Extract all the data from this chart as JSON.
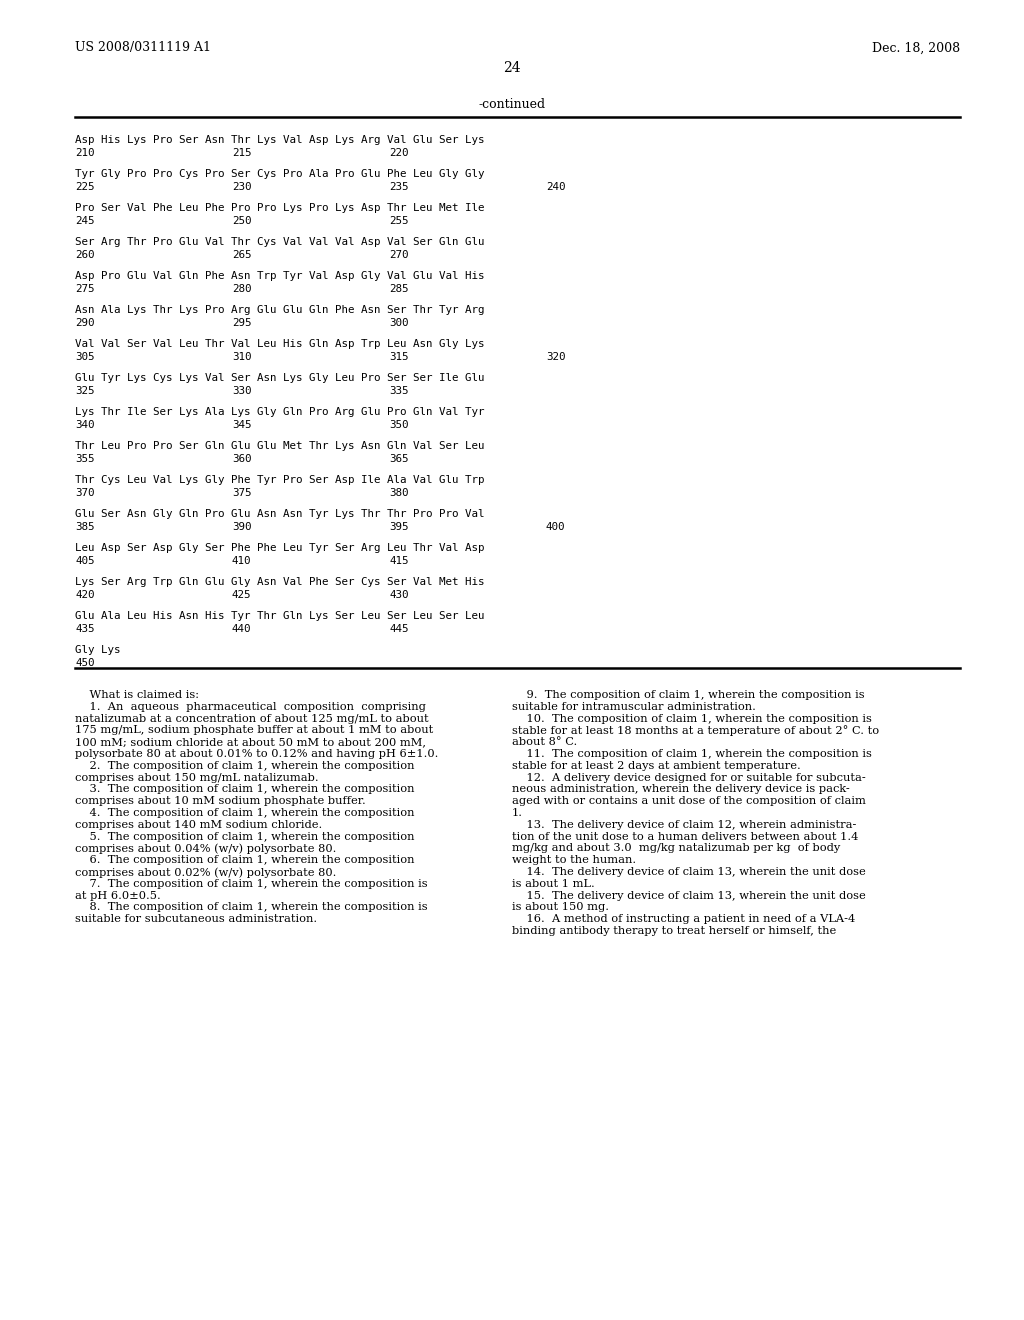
{
  "header_left": "US 2008/0311119 A1",
  "header_right": "Dec. 18, 2008",
  "page_number": "24",
  "continued_label": "-continued",
  "background_color": "#ffffff",
  "seq_data": [
    {
      "aa": "Asp His Lys Pro Ser Asn Thr Lys Val Asp Lys Arg Val Glu Ser Lys",
      "nums": [
        [
          "210",
          0
        ],
        [
          "215",
          157
        ],
        [
          "220",
          314
        ]
      ]
    },
    {
      "aa": "Tyr Gly Pro Pro Cys Pro Ser Cys Pro Ala Pro Glu Phe Leu Gly Gly",
      "nums": [
        [
          "225",
          0
        ],
        [
          "230",
          157
        ],
        [
          "235",
          314
        ],
        [
          "240",
          471
        ]
      ]
    },
    {
      "aa": "Pro Ser Val Phe Leu Phe Pro Pro Lys Pro Lys Asp Thr Leu Met Ile",
      "nums": [
        [
          "245",
          0
        ],
        [
          "250",
          157
        ],
        [
          "255",
          314
        ]
      ]
    },
    {
      "aa": "Ser Arg Thr Pro Glu Val Thr Cys Val Val Val Asp Val Ser Gln Glu",
      "nums": [
        [
          "260",
          0
        ],
        [
          "265",
          157
        ],
        [
          "270",
          314
        ]
      ]
    },
    {
      "aa": "Asp Pro Glu Val Gln Phe Asn Trp Tyr Val Asp Gly Val Glu Val His",
      "nums": [
        [
          "275",
          0
        ],
        [
          "280",
          157
        ],
        [
          "285",
          314
        ]
      ]
    },
    {
      "aa": "Asn Ala Lys Thr Lys Pro Arg Glu Glu Gln Phe Asn Ser Thr Tyr Arg",
      "nums": [
        [
          "290",
          0
        ],
        [
          "295",
          157
        ],
        [
          "300",
          314
        ]
      ]
    },
    {
      "aa": "Val Val Ser Val Leu Thr Val Leu His Gln Asp Trp Leu Asn Gly Lys",
      "nums": [
        [
          "305",
          0
        ],
        [
          "310",
          157
        ],
        [
          "315",
          314
        ],
        [
          "320",
          471
        ]
      ]
    },
    {
      "aa": "Glu Tyr Lys Cys Lys Val Ser Asn Lys Gly Leu Pro Ser Ser Ile Glu",
      "nums": [
        [
          "325",
          0
        ],
        [
          "330",
          157
        ],
        [
          "335",
          314
        ]
      ]
    },
    {
      "aa": "Lys Thr Ile Ser Lys Ala Lys Gly Gln Pro Arg Glu Pro Gln Val Tyr",
      "nums": [
        [
          "340",
          0
        ],
        [
          "345",
          157
        ],
        [
          "350",
          314
        ]
      ]
    },
    {
      "aa": "Thr Leu Pro Pro Ser Gln Glu Glu Met Thr Lys Asn Gln Val Ser Leu",
      "nums": [
        [
          "355",
          0
        ],
        [
          "360",
          157
        ],
        [
          "365",
          314
        ]
      ]
    },
    {
      "aa": "Thr Cys Leu Val Lys Gly Phe Tyr Pro Ser Asp Ile Ala Val Glu Trp",
      "nums": [
        [
          "370",
          0
        ],
        [
          "375",
          157
        ],
        [
          "380",
          314
        ]
      ]
    },
    {
      "aa": "Glu Ser Asn Gly Gln Pro Glu Asn Asn Tyr Lys Thr Thr Pro Pro Val",
      "nums": [
        [
          "385",
          0
        ],
        [
          "390",
          157
        ],
        [
          "395",
          314
        ],
        [
          "400",
          471
        ]
      ]
    },
    {
      "aa": "Leu Asp Ser Asp Gly Ser Phe Phe Leu Tyr Ser Arg Leu Thr Val Asp",
      "nums": [
        [
          "405",
          0
        ],
        [
          "410",
          157
        ],
        [
          "415",
          314
        ]
      ]
    },
    {
      "aa": "Lys Ser Arg Trp Gln Glu Gly Asn Val Phe Ser Cys Ser Val Met His",
      "nums": [
        [
          "420",
          0
        ],
        [
          "425",
          157
        ],
        [
          "430",
          314
        ]
      ]
    },
    {
      "aa": "Glu Ala Leu His Asn His Tyr Thr Gln Lys Ser Leu Ser Leu Ser Leu",
      "nums": [
        [
          "435",
          0
        ],
        [
          "440",
          157
        ],
        [
          "445",
          314
        ]
      ]
    },
    {
      "aa": "Gly Lys",
      "nums": [
        [
          "450",
          0
        ]
      ]
    }
  ],
  "left_claims": [
    [
      "    What is claimed is:",
      false
    ],
    [
      "    1.  An  aqueous  pharmaceutical  composition  comprising",
      true
    ],
    [
      "natalizumab at a concentration of about 125 mg/mL to about",
      false
    ],
    [
      "175 mg/mL, sodium phosphate buffer at about 1 mM to about",
      false
    ],
    [
      "100 mM; sodium chloride at about 50 mM to about 200 mM,",
      false
    ],
    [
      "polysorbate 80 at about 0.01% to 0.12% and having pH 6±1.0.",
      false
    ],
    [
      "    2.  The composition of claim 1, wherein the composition",
      true
    ],
    [
      "comprises about 150 mg/mL natalizumab.",
      false
    ],
    [
      "    3.  The composition of claim 1, wherein the composition",
      true
    ],
    [
      "comprises about 10 mM sodium phosphate buffer.",
      false
    ],
    [
      "    4.  The composition of claim 1, wherein the composition",
      true
    ],
    [
      "comprises about 140 mM sodium chloride.",
      false
    ],
    [
      "    5.  The composition of claim 1, wherein the composition",
      true
    ],
    [
      "comprises about 0.04% (w/v) polysorbate 80.",
      false
    ],
    [
      "    6.  The composition of claim 1, wherein the composition",
      true
    ],
    [
      "comprises about 0.02% (w/v) polysorbate 80.",
      false
    ],
    [
      "    7.  The composition of claim 1, wherein the composition is",
      true
    ],
    [
      "at pH 6.0±0.5.",
      false
    ],
    [
      "    8.  The composition of claim 1, wherein the composition is",
      true
    ],
    [
      "suitable for subcutaneous administration.",
      false
    ]
  ],
  "right_claims": [
    [
      "    9.  The composition of claim 1, wherein the composition is",
      true
    ],
    [
      "suitable for intramuscular administration.",
      false
    ],
    [
      "    10.  The composition of claim 1, wherein the composition is",
      true
    ],
    [
      "stable for at least 18 months at a temperature of about 2° C. to",
      false
    ],
    [
      "about 8° C.",
      false
    ],
    [
      "    11.  The composition of claim 1, wherein the composition is",
      true
    ],
    [
      "stable for at least 2 days at ambient temperature.",
      false
    ],
    [
      "    12.  A delivery device designed for or suitable for subcuta-",
      true
    ],
    [
      "neous administration, wherein the delivery device is pack-",
      false
    ],
    [
      "aged with or contains a unit dose of the composition of claim",
      false
    ],
    [
      "1.",
      false
    ],
    [
      "    13.  The delivery device of claim 12, wherein administra-",
      true
    ],
    [
      "tion of the unit dose to a human delivers between about 1.4",
      false
    ],
    [
      "mg/kg and about 3.0  mg/kg natalizumab per kg  of body",
      false
    ],
    [
      "weight to the human.",
      false
    ],
    [
      "    14.  The delivery device of claim 13, wherein the unit dose",
      true
    ],
    [
      "is about 1 mL.",
      false
    ],
    [
      "    15.  The delivery device of claim 13, wherein the unit dose",
      true
    ],
    [
      "is about 150 mg.",
      false
    ],
    [
      "    16.  A method of instructing a patient in need of a VLA-4",
      true
    ],
    [
      "binding antibody therapy to treat herself or himself, the",
      false
    ]
  ]
}
